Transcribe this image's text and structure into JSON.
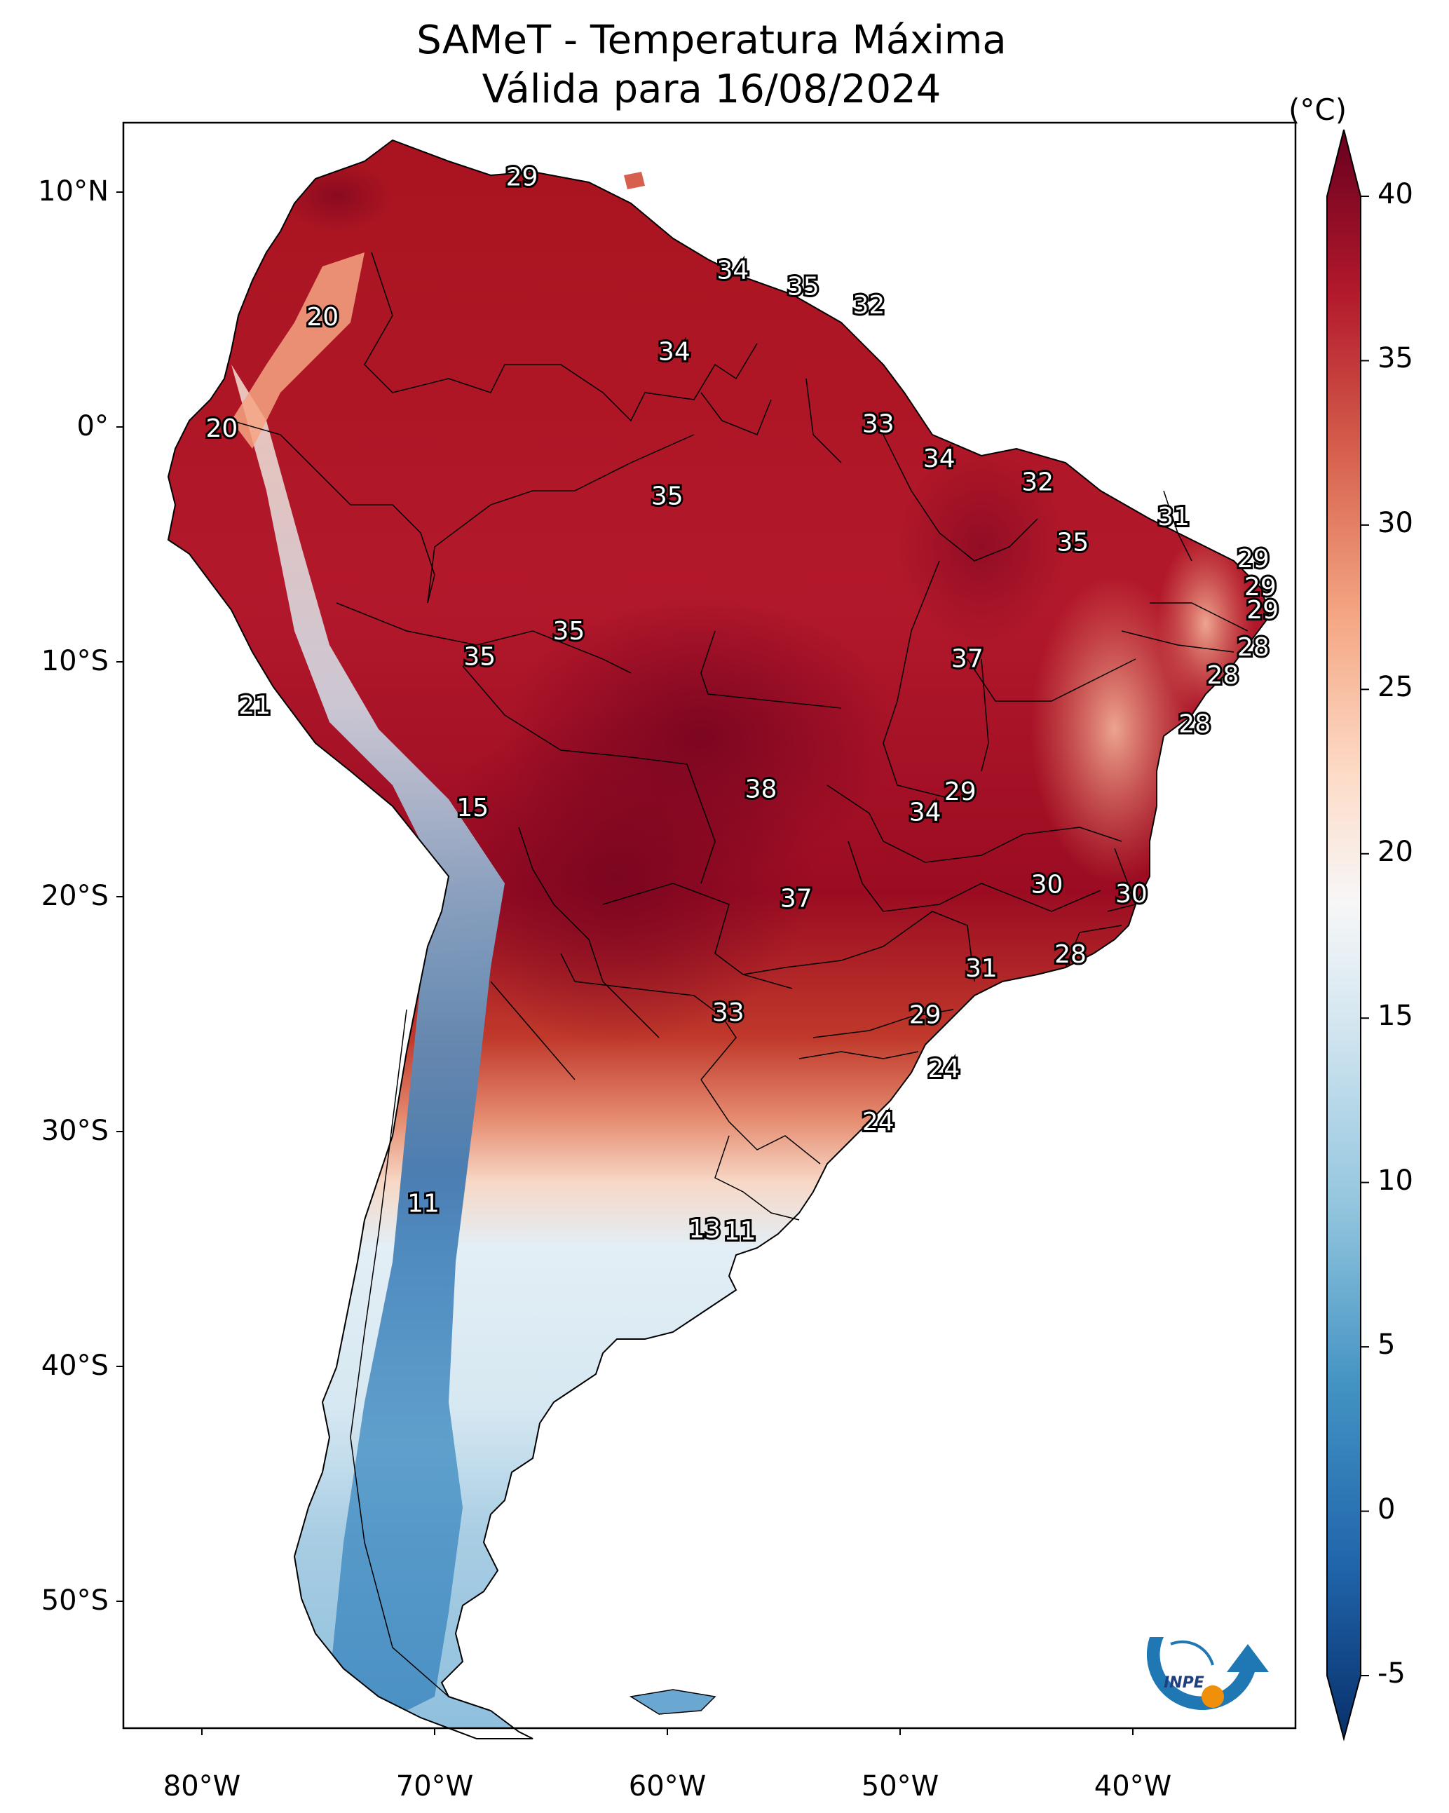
{
  "title": "SAMeT - Temperatura Máxima",
  "subtitle": "Válida para 16/08/2024",
  "colorbar": {
    "unit": "(°C)",
    "ticks": [
      "-5",
      "0",
      "5",
      "10",
      "15",
      "20",
      "25",
      "30",
      "35",
      "40"
    ],
    "range": [
      -5,
      40
    ],
    "colormap": "RdBu_r",
    "colors": [
      "#08306b",
      "#2166ac",
      "#4393c3",
      "#92c5de",
      "#d1e5f0",
      "#f7f7f7",
      "#fddbc7",
      "#f4a582",
      "#d6604d",
      "#b2182b",
      "#67001f"
    ]
  },
  "axes": {
    "lat_labels": [
      "10°N",
      "0°",
      "10°S",
      "20°S",
      "30°S",
      "40°S",
      "50°S"
    ],
    "lon_labels": [
      "80°W",
      "70°W",
      "60°W",
      "50°W",
      "40°W"
    ],
    "lon_range": [
      -83,
      -33
    ],
    "lat_range": [
      -56,
      13
    ]
  },
  "map_labels": [
    {
      "text": "29",
      "lon": -66,
      "lat": 10.6
    },
    {
      "text": "20",
      "lon": -74.5,
      "lat": 4.6
    },
    {
      "text": "34",
      "lon": -57,
      "lat": 6.6
    },
    {
      "text": "35",
      "lon": -54,
      "lat": 5.9
    },
    {
      "text": "32",
      "lon": -51.2,
      "lat": 5.1
    },
    {
      "text": "34",
      "lon": -59.5,
      "lat": 3.1
    },
    {
      "text": "20",
      "lon": -78.8,
      "lat": -0.2
    },
    {
      "text": "33",
      "lon": -50.8,
      "lat": 0.0
    },
    {
      "text": "34",
      "lon": -48.2,
      "lat": -1.5
    },
    {
      "text": "35",
      "lon": -59.8,
      "lat": -3.1
    },
    {
      "text": "32",
      "lon": -44,
      "lat": -2.5
    },
    {
      "text": "31",
      "lon": -38.2,
      "lat": -4.0
    },
    {
      "text": "35",
      "lon": -42.5,
      "lat": -5.1
    },
    {
      "text": "29",
      "lon": -34.8,
      "lat": -5.8
    },
    {
      "text": "29",
      "lon": -34.5,
      "lat": -7.0
    },
    {
      "text": "29",
      "lon": -34.4,
      "lat": -8.0
    },
    {
      "text": "35",
      "lon": -64,
      "lat": -8.9
    },
    {
      "text": "35",
      "lon": -67.8,
      "lat": -10.0
    },
    {
      "text": "37",
      "lon": -47,
      "lat": -10.1
    },
    {
      "text": "28",
      "lon": -34.8,
      "lat": -9.6
    },
    {
      "text": "28",
      "lon": -36.1,
      "lat": -10.8
    },
    {
      "text": "21",
      "lon": -77.4,
      "lat": -12.1
    },
    {
      "text": "28",
      "lon": -37.3,
      "lat": -12.9
    },
    {
      "text": "38",
      "lon": -55.8,
      "lat": -15.7
    },
    {
      "text": "29",
      "lon": -47.3,
      "lat": -15.8
    },
    {
      "text": "34",
      "lon": -48.8,
      "lat": -16.7
    },
    {
      "text": "15",
      "lon": -68.1,
      "lat": -16.5
    },
    {
      "text": "30",
      "lon": -43.6,
      "lat": -19.8
    },
    {
      "text": "30",
      "lon": -40,
      "lat": -20.2
    },
    {
      "text": "37",
      "lon": -54.3,
      "lat": -20.4
    },
    {
      "text": "28",
      "lon": -42.6,
      "lat": -22.8
    },
    {
      "text": "31",
      "lon": -46.4,
      "lat": -23.4
    },
    {
      "text": "33",
      "lon": -57.2,
      "lat": -25.3
    },
    {
      "text": "29",
      "lon": -48.8,
      "lat": -25.4
    },
    {
      "text": "24",
      "lon": -48,
      "lat": -27.7
    },
    {
      "text": "24",
      "lon": -50.8,
      "lat": -30.0
    },
    {
      "text": "11",
      "lon": -70.2,
      "lat": -33.5
    },
    {
      "text": "13",
      "lon": -58.2,
      "lat": -34.6
    },
    {
      "text": "11",
      "lon": -56.7,
      "lat": -34.7
    }
  ],
  "logo": {
    "text": "INPE"
  }
}
